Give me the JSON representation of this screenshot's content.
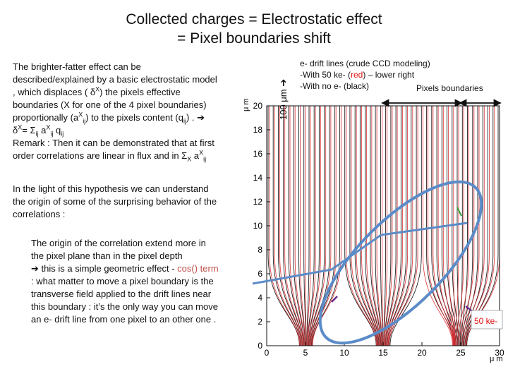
{
  "title": {
    "line1": "Collected charges = Electrostatic effect",
    "line2": "= Pixel boundaries shift"
  },
  "paragraph1": {
    "l1": "The brighter-fatter effect can be",
    "l2": "described/explained  by a basic electrostatic model",
    "l3": ", which displaces ( δ",
    "l3_sup": "X",
    "l3b": ")  the pixels effective",
    "l4": "boundaries (X for one of the 4 pixel boundaries)",
    "l5a": "proportionally  (a",
    "l5_sup": "X",
    "l5_sub": "ij",
    "l5b": ") to the  pixels content (q",
    "l5_sub2": "ij",
    "l5c": ") .  ➔",
    "l6a": "δ",
    "l6_sup": "X",
    "l6b": "= Σ",
    "l6_sub1": "ij",
    "l6c": " a",
    "l6_sup2": "X",
    "l6_sub2": "ij",
    "l6d": " q",
    "l6_sub3": "ij",
    "l7": "Remark : Then it can be demonstrated that at first",
    "l8a": "order  correlations are linear in flux and in  Σ",
    "l8_sub": "X",
    "l8b": " a",
    "l8_sup": "X",
    "l8_sub2": "ij"
  },
  "paragraph2": {
    "l1": "In the light of this hypothesis we can understand",
    "l2": "the origin of some of the surprising behavior of the",
    "l3": "correlations :"
  },
  "paragraph3": {
    "l1": "The origin of the correlation extend more in",
    "l2": " the pixel plane than in the pixel depth",
    "l3a": " ➔ this is a simple geometric effect - ",
    "l3_cos": "cos() term",
    "l4": " : what matter to move a pixel boundary  is the",
    "l5": " transverse field applied to the drift lines near",
    "l6": " this boundary  : it’s the only way you can move",
    "l7": " an e- drift line from one pixel to an other one ."
  },
  "annotation": {
    "l1": "e- drift lines (crude CCD modeling)",
    "l2a": "-With 50 ke- (",
    "l2_red": "red",
    "l2b": ") – lower right",
    "l3": "-With no e- (black)",
    "pixels_boundaries": "Pixels boundaries"
  },
  "axis": {
    "depth_label": "100 μm ➔",
    "y_unit": "μ m",
    "x_unit": "μ m",
    "y_ticks": [
      "0",
      "2",
      "4",
      "6",
      "8",
      "10",
      "12",
      "14",
      "16",
      "18",
      "20"
    ],
    "x_ticks": [
      "0",
      "5",
      "10",
      "15",
      "20",
      "25",
      "30"
    ]
  },
  "plot": {
    "label_50ke": "50 ke-",
    "color_red": "#d9262a",
    "color_black": "#222222",
    "color_ellipse": "#5b8bc8"
  }
}
